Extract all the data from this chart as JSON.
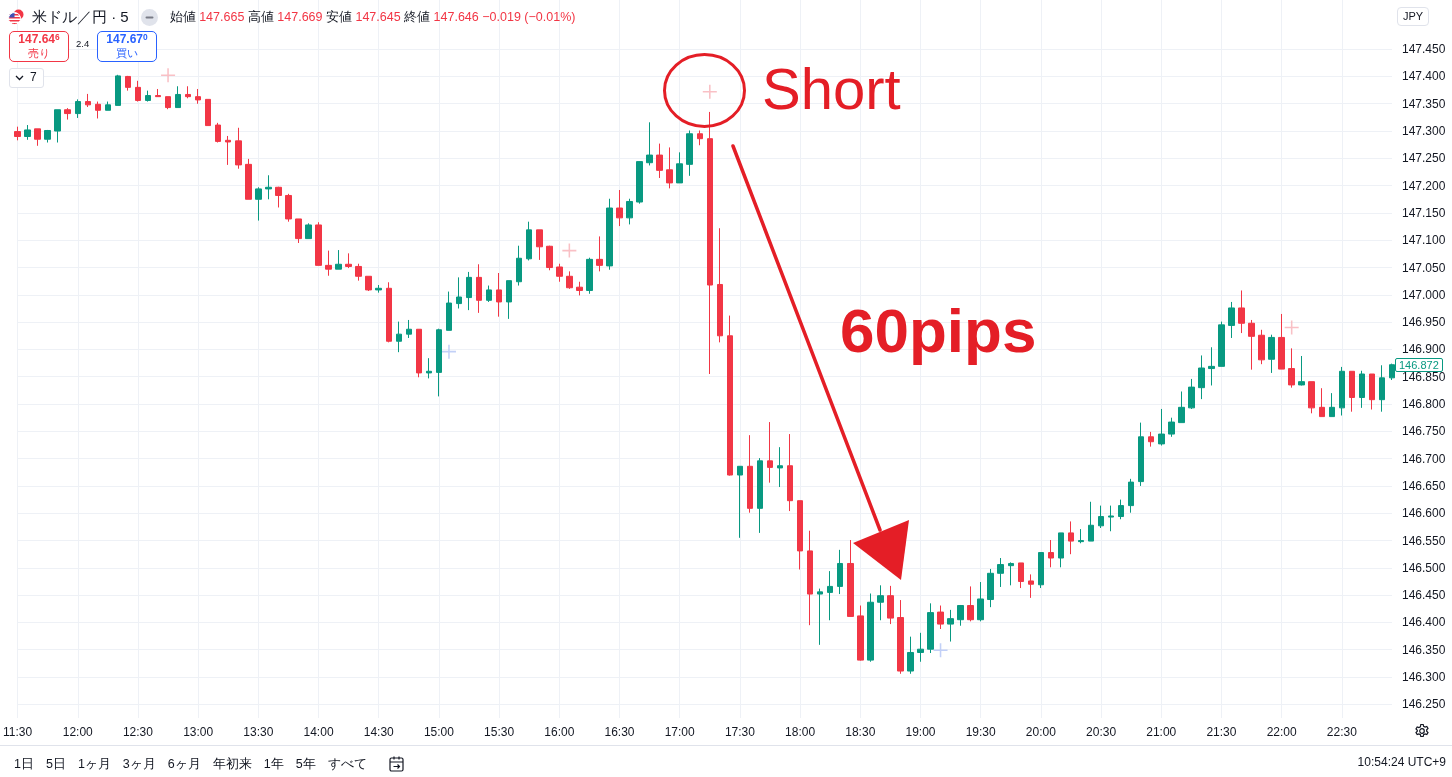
{
  "chart_data": {
    "type": "candlestick",
    "title": "米ドル／円 · 5",
    "subtitle": "始値 147.665 高値 147.669 安値 147.645 終値 147.646 −0.019 (−0.01%)",
    "categories": [
      "11:30",
      null,
      null,
      null,
      null,
      null,
      "12:00",
      null,
      null,
      null,
      null,
      null,
      "12:30",
      null,
      null,
      null,
      null,
      null,
      "13:00",
      null,
      null,
      null,
      null,
      null,
      "13:30",
      null,
      null,
      null,
      null,
      null,
      "14:00",
      null,
      null,
      null,
      null,
      null,
      "14:30",
      null,
      null,
      null,
      null,
      null,
      "15:00",
      null,
      null,
      null,
      null,
      null,
      "15:30",
      null,
      null,
      null,
      null,
      null,
      "16:00",
      null,
      null,
      null,
      null,
      null,
      "16:30",
      null,
      null,
      null,
      null,
      null,
      "17:00",
      null,
      null,
      null,
      null,
      null,
      "17:30",
      null,
      null,
      null,
      null,
      null,
      "18:00",
      null,
      null,
      null,
      null,
      null,
      "18:30",
      null,
      null,
      null,
      null,
      null,
      "19:00",
      null,
      null,
      null,
      null,
      null,
      "19:30",
      null,
      null,
      null,
      null,
      null,
      "20:00",
      null,
      null,
      null,
      null,
      null,
      "20:30",
      null,
      null,
      null,
      null,
      null,
      "21:00",
      null,
      null,
      null,
      null,
      null,
      "21:30",
      null,
      null,
      null,
      null,
      null,
      "22:00",
      null,
      null,
      null,
      null,
      null,
      "22:30",
      null,
      null,
      null,
      null,
      null
    ],
    "ohlc": [
      [
        147.299,
        147.308,
        147.283,
        147.29
      ],
      [
        147.29,
        147.311,
        147.284,
        147.302
      ],
      [
        147.304,
        147.304,
        147.273,
        147.285
      ],
      [
        147.285,
        147.302,
        147.279,
        147.301
      ],
      [
        147.3,
        147.339,
        147.279,
        147.339
      ],
      [
        147.339,
        147.342,
        147.321,
        147.332
      ],
      [
        147.332,
        147.358,
        147.324,
        147.354
      ],
      [
        147.354,
        147.368,
        147.344,
        147.348
      ],
      [
        147.349,
        147.354,
        147.323,
        147.338
      ],
      [
        147.338,
        147.354,
        147.338,
        147.348
      ],
      [
        147.347,
        147.403,
        147.347,
        147.401
      ],
      [
        147.4,
        147.401,
        147.374,
        147.38
      ],
      [
        147.38,
        147.392,
        147.354,
        147.356
      ],
      [
        147.356,
        147.374,
        147.354,
        147.365
      ],
      [
        147.365,
        147.377,
        147.363,
        147.363
      ],
      [
        147.363,
        147.363,
        147.34,
        147.343
      ],
      [
        147.343,
        147.382,
        147.343,
        147.367
      ],
      [
        147.367,
        147.382,
        147.36,
        147.363
      ],
      [
        147.363,
        147.377,
        147.35,
        147.357
      ],
      [
        147.358,
        147.358,
        147.31,
        147.31
      ],
      [
        147.311,
        147.315,
        147.279,
        147.281
      ],
      [
        147.283,
        147.291,
        147.238,
        147.28
      ],
      [
        147.282,
        147.306,
        147.231,
        147.238
      ],
      [
        147.239,
        147.249,
        147.175,
        147.175
      ],
      [
        147.175,
        147.197,
        147.136,
        147.194
      ],
      [
        147.194,
        147.219,
        147.175,
        147.197
      ],
      [
        147.197,
        147.198,
        147.16,
        147.182
      ],
      [
        147.182,
        147.185,
        147.134,
        147.139
      ],
      [
        147.139,
        147.139,
        147.095,
        147.103
      ],
      [
        147.103,
        147.131,
        147.103,
        147.128
      ],
      [
        147.128,
        147.133,
        147.054,
        147.054
      ],
      [
        147.054,
        147.081,
        147.035,
        147.047
      ],
      [
        147.047,
        147.082,
        147.047,
        147.056
      ],
      [
        147.056,
        147.076,
        147.049,
        147.052
      ],
      [
        147.052,
        147.057,
        147.026,
        147.034
      ],
      [
        147.034,
        147.034,
        147.007,
        147.009
      ],
      [
        147.009,
        147.018,
        147.004,
        147.012
      ],
      [
        147.012,
        147.023,
        146.913,
        146.915
      ],
      [
        146.915,
        146.951,
        146.895,
        146.928
      ],
      [
        146.928,
        146.954,
        146.921,
        146.937
      ],
      [
        146.937,
        146.937,
        146.849,
        146.857
      ],
      [
        146.857,
        146.884,
        146.847,
        146.86
      ],
      [
        146.858,
        146.938,
        146.814,
        146.936
      ],
      [
        146.935,
        147.006,
        146.935,
        146.985
      ],
      [
        146.984,
        147.032,
        146.975,
        146.996
      ],
      [
        146.995,
        147.042,
        146.972,
        147.032
      ],
      [
        147.032,
        147.056,
        146.967,
        146.99
      ],
      [
        146.99,
        147.017,
        146.987,
        147.009
      ],
      [
        147.009,
        147.04,
        146.96,
        146.987
      ],
      [
        146.987,
        147.026,
        146.956,
        147.026
      ],
      [
        147.024,
        147.09,
        147.017,
        147.067
      ],
      [
        147.066,
        147.134,
        147.063,
        147.119
      ],
      [
        147.119,
        147.119,
        147.064,
        147.088
      ],
      [
        147.089,
        147.09,
        147.045,
        147.05
      ],
      [
        147.051,
        147.057,
        147.024,
        147.034
      ],
      [
        147.034,
        147.043,
        147.011,
        147.013
      ],
      [
        147.014,
        147.024,
        146.999,
        147.008
      ],
      [
        147.008,
        147.068,
        147.002,
        147.065
      ],
      [
        147.065,
        147.107,
        147.043,
        147.054
      ],
      [
        147.053,
        147.176,
        147.046,
        147.159
      ],
      [
        147.159,
        147.192,
        147.126,
        147.141
      ],
      [
        147.141,
        147.176,
        147.129,
        147.171
      ],
      [
        147.17,
        147.244,
        147.167,
        147.244
      ],
      [
        147.242,
        147.316,
        147.237,
        147.256
      ],
      [
        147.256,
        147.277,
        147.214,
        147.228
      ],
      [
        147.229,
        147.27,
        147.195,
        147.205
      ],
      [
        147.205,
        147.261,
        147.205,
        147.24
      ],
      [
        147.239,
        147.301,
        147.218,
        147.295
      ],
      [
        147.295,
        147.301,
        147.274,
        147.286
      ],
      [
        147.286,
        147.335,
        146.855,
        147.018
      ],
      [
        147.019,
        147.122,
        146.913,
        146.925
      ],
      [
        146.925,
        146.962,
        146.669,
        146.67
      ],
      [
        146.67,
        146.686,
        146.555,
        146.686
      ],
      [
        146.686,
        146.743,
        146.601,
        146.609
      ],
      [
        146.609,
        146.701,
        146.564,
        146.696
      ],
      [
        146.696,
        146.767,
        146.656,
        146.684
      ],
      [
        146.683,
        146.721,
        146.648,
        146.687
      ],
      [
        146.687,
        146.745,
        146.604,
        146.623
      ],
      [
        146.623,
        146.623,
        146.497,
        146.531
      ],
      [
        146.531,
        146.568,
        146.395,
        146.452
      ],
      [
        146.452,
        146.462,
        146.359,
        146.456
      ],
      [
        146.455,
        146.494,
        146.404,
        146.466
      ],
      [
        146.466,
        146.533,
        146.452,
        146.508
      ],
      [
        146.508,
        146.551,
        146.411,
        146.411
      ],
      [
        146.412,
        146.431,
        146.33,
        146.331
      ],
      [
        146.331,
        146.453,
        146.328,
        146.437
      ],
      [
        146.437,
        146.468,
        146.404,
        146.449
      ],
      [
        146.449,
        146.467,
        146.397,
        146.408
      ],
      [
        146.409,
        146.441,
        146.306,
        146.311
      ],
      [
        146.311,
        146.374,
        146.306,
        146.345
      ],
      [
        146.345,
        146.381,
        146.328,
        146.351
      ],
      [
        146.351,
        146.435,
        146.344,
        146.418
      ],
      [
        146.419,
        146.431,
        146.388,
        146.397
      ],
      [
        146.397,
        146.423,
        146.365,
        146.407
      ],
      [
        146.405,
        146.432,
        146.394,
        146.431
      ],
      [
        146.431,
        146.466,
        146.402,
        146.405
      ],
      [
        146.405,
        146.474,
        146.402,
        146.443
      ],
      [
        146.442,
        146.498,
        146.428,
        146.49
      ],
      [
        146.49,
        146.518,
        146.465,
        146.506
      ],
      [
        146.504,
        146.51,
        146.468,
        146.508
      ],
      [
        146.509,
        146.509,
        146.463,
        146.475
      ],
      [
        146.476,
        146.488,
        146.445,
        146.47
      ],
      [
        146.469,
        146.528,
        146.463,
        146.528
      ],
      [
        146.528,
        146.551,
        146.501,
        146.518
      ],
      [
        146.518,
        146.564,
        146.501,
        146.564
      ],
      [
        146.564,
        146.585,
        146.525,
        146.549
      ],
      [
        146.548,
        146.571,
        146.545,
        146.55
      ],
      [
        146.549,
        146.621,
        146.549,
        146.578
      ],
      [
        146.577,
        146.614,
        146.573,
        146.594
      ],
      [
        146.593,
        146.614,
        146.567,
        146.595
      ],
      [
        146.594,
        146.625,
        146.589,
        146.614
      ],
      [
        146.614,
        146.663,
        146.601,
        146.657
      ],
      [
        146.658,
        146.766,
        146.65,
        146.74
      ],
      [
        146.74,
        146.749,
        146.722,
        146.731
      ],
      [
        146.727,
        146.791,
        146.724,
        146.745
      ],
      [
        146.745,
        146.775,
        146.74,
        146.767
      ],
      [
        146.766,
        146.823,
        146.766,
        146.794
      ],
      [
        146.793,
        146.846,
        146.791,
        146.831
      ],
      [
        146.83,
        146.889,
        146.809,
        146.866
      ],
      [
        146.865,
        146.904,
        146.834,
        146.869
      ],
      [
        146.869,
        146.951,
        146.869,
        146.945
      ],
      [
        146.944,
        146.987,
        146.921,
        146.976
      ],
      [
        146.976,
        147.008,
        146.93,
        146.948
      ],
      [
        146.948,
        146.954,
        146.863,
        146.924
      ],
      [
        146.926,
        146.936,
        146.873,
        146.881
      ],
      [
        146.882,
        146.927,
        146.857,
        146.922
      ],
      [
        146.922,
        146.965,
        146.864,
        146.864
      ],
      [
        146.865,
        146.902,
        146.83,
        146.835
      ],
      [
        146.835,
        146.888,
        146.834,
        146.841
      ],
      [
        146.841,
        146.841,
        146.783,
        146.793
      ],
      [
        146.794,
        146.829,
        146.777,
        146.777
      ],
      [
        146.777,
        146.82,
        146.777,
        146.794
      ],
      [
        146.793,
        146.868,
        146.779,
        146.86
      ],
      [
        146.86,
        146.86,
        146.786,
        146.812
      ],
      [
        146.812,
        146.861,
        146.793,
        146.855
      ],
      [
        146.855,
        146.855,
        146.79,
        146.808
      ],
      [
        146.808,
        146.871,
        146.786,
        146.848
      ],
      [
        146.848,
        146.874,
        146.844,
        146.872
      ]
    ],
    "colors": [
      "#f23645",
      "#089981",
      "#f23645",
      "#089981",
      "#089981",
      "#f23645",
      "#089981",
      "#f23645",
      "#f23645",
      "#089981",
      "#089981",
      "#f23645",
      "#f23645",
      "#089981",
      "#f23645",
      "#f23645",
      "#089981",
      "#f23645",
      "#f23645",
      "#f23645",
      "#f23645",
      "#f23645",
      "#f23645",
      "#f23645",
      "#089981",
      "#089981",
      "#f23645",
      "#f23645",
      "#f23645",
      "#089981",
      "#f23645",
      "#f23645",
      "#089981",
      "#f23645",
      "#f23645",
      "#f23645",
      "#089981",
      "#f23645",
      "#089981",
      "#089981",
      "#f23645",
      "#089981",
      "#089981",
      "#089981",
      "#089981",
      "#089981",
      "#f23645",
      "#089981",
      "#f23645",
      "#089981",
      "#089981",
      "#089981",
      "#f23645",
      "#f23645",
      "#f23645",
      "#f23645",
      "#f23645",
      "#089981",
      "#f23645",
      "#089981",
      "#f23645",
      "#089981",
      "#089981",
      "#089981",
      "#f23645",
      "#f23645",
      "#089981",
      "#089981",
      "#f23645",
      "#f23645",
      "#f23645",
      "#f23645",
      "#089981",
      "#f23645",
      "#089981",
      "#f23645",
      "#089981",
      "#f23645",
      "#f23645",
      "#f23645",
      "#089981",
      "#089981",
      "#089981",
      "#f23645",
      "#f23645",
      "#089981",
      "#089981",
      "#f23645",
      "#f23645",
      "#089981",
      "#089981",
      "#089981",
      "#f23645",
      "#089981",
      "#089981",
      "#f23645",
      "#089981",
      "#089981",
      "#089981",
      "#089981",
      "#f23645",
      "#f23645",
      "#089981",
      "#f23645",
      "#089981",
      "#f23645",
      "#089981",
      "#089981",
      "#089981",
      "#089981",
      "#089981",
      "#089981",
      "#089981",
      "#f23645",
      "#089981",
      "#089981",
      "#089981",
      "#089981",
      "#089981",
      "#089981",
      "#089981",
      "#089981",
      "#f23645",
      "#f23645",
      "#f23645",
      "#089981",
      "#f23645",
      "#f23645",
      "#089981",
      "#f23645",
      "#f23645",
      "#089981",
      "#089981",
      "#f23645",
      "#089981",
      "#f23645",
      "#089981",
      "#089981"
    ],
    "series": [
      {
        "type": "scatter",
        "marker": "cross",
        "color": "#f7b0b7",
        "values": [
          null,
          null,
          null,
          null,
          null,
          null,
          null,
          null,
          null,
          null,
          null,
          null,
          null,
          null,
          null,
          147.402,
          null,
          null,
          null,
          null,
          null,
          null,
          null,
          null,
          null,
          null,
          null,
          null,
          null,
          null,
          null,
          null,
          null,
          null,
          null,
          null,
          null,
          null,
          null,
          null,
          null,
          null,
          null,
          null,
          null,
          null,
          null,
          null,
          null,
          null,
          null,
          null,
          null,
          null,
          null,
          147.081,
          null,
          null,
          null,
          null,
          null,
          null,
          null,
          null,
          null,
          null,
          null,
          null,
          null,
          147.372,
          null,
          null,
          null,
          null,
          null,
          null,
          null,
          null,
          null,
          null,
          null,
          null,
          null,
          null,
          null,
          null,
          null,
          null,
          null,
          null,
          null,
          null,
          null,
          null,
          null,
          null,
          null,
          null,
          null,
          null,
          null,
          null,
          null,
          null,
          null,
          null,
          null,
          null,
          null,
          null,
          null,
          null,
          null,
          null,
          null,
          null,
          null,
          null,
          null,
          null,
          null,
          null,
          null,
          null,
          null,
          null,
          null,
          146.94,
          null,
          null,
          null,
          null,
          null,
          null,
          null,
          null,
          null,
          null
        ]
      },
      {
        "type": "scatter",
        "marker": "cross",
        "color": "#b3c4f5",
        "values": [
          null,
          null,
          null,
          null,
          null,
          null,
          null,
          null,
          null,
          null,
          null,
          null,
          null,
          null,
          null,
          null,
          null,
          null,
          null,
          null,
          null,
          null,
          null,
          null,
          null,
          null,
          null,
          null,
          null,
          null,
          null,
          null,
          null,
          null,
          null,
          null,
          null,
          null,
          null,
          null,
          null,
          null,
          null,
          146.896,
          null,
          null,
          null,
          null,
          null,
          null,
          null,
          null,
          null,
          null,
          null,
          null,
          null,
          null,
          null,
          null,
          null,
          null,
          null,
          null,
          null,
          null,
          null,
          null,
          null,
          null,
          null,
          null,
          null,
          null,
          null,
          null,
          null,
          null,
          null,
          null,
          null,
          null,
          null,
          null,
          null,
          null,
          null,
          null,
          null,
          null,
          null,
          null,
          146.349,
          null,
          null,
          null,
          null,
          null,
          null,
          null,
          null,
          null,
          null,
          null,
          null,
          null,
          null,
          null,
          null,
          null,
          null,
          null,
          null,
          null,
          null,
          null,
          null,
          null,
          null,
          null,
          null,
          null,
          null,
          null,
          null,
          null,
          null,
          null,
          null,
          null,
          null,
          null,
          null,
          null,
          null,
          null,
          null,
          null
        ]
      }
    ],
    "ylim": [
      146.225,
      147.54
    ],
    "yticks": [
      {
        "value": 146.25,
        "label": "146.250"
      },
      {
        "value": 146.3,
        "label": "146.300"
      },
      {
        "value": 146.35,
        "label": "146.350"
      },
      {
        "value": 146.4,
        "label": "146.400"
      },
      {
        "value": 146.45,
        "label": "146.450"
      },
      {
        "value": 146.5,
        "label": "146.500"
      },
      {
        "value": 146.55,
        "label": "146.550"
      },
      {
        "value": 146.6,
        "label": "146.600"
      },
      {
        "value": 146.65,
        "label": "146.650"
      },
      {
        "value": 146.7,
        "label": "146.700"
      },
      {
        "value": 146.75,
        "label": "146.750"
      },
      {
        "value": 146.8,
        "label": "146.800"
      },
      {
        "value": 146.85,
        "label": "146.850"
      },
      {
        "value": 146.9,
        "label": "146.900"
      },
      {
        "value": 146.95,
        "label": "146.950"
      },
      {
        "value": 147.0,
        "label": "147.000"
      },
      {
        "value": 147.05,
        "label": "147.050"
      },
      {
        "value": 147.1,
        "label": "147.100"
      },
      {
        "value": 147.15,
        "label": "147.150"
      },
      {
        "value": 147.2,
        "label": "147.200"
      },
      {
        "value": 147.25,
        "label": "147.250"
      },
      {
        "value": 147.3,
        "label": "147.300"
      },
      {
        "value": 147.35,
        "label": "147.350"
      },
      {
        "value": 147.4,
        "label": "147.400"
      },
      {
        "value": 147.45,
        "label": "147.450"
      }
    ],
    "grid": true,
    "annotations": [
      "147.64$^{6}$",
      "売り",
      "2.4",
      "147.67$^{0}$",
      "買い",
      "7",
      "JPY",
      "Short",
      "60pips",
      "1日",
      "5日",
      "1ヶ月",
      "3ヶ月",
      "6ヶ月",
      "年初来",
      "1年",
      "5年",
      "すべて",
      "10:54:24 UTC+9",
      "146.872"
    ]
  }
}
